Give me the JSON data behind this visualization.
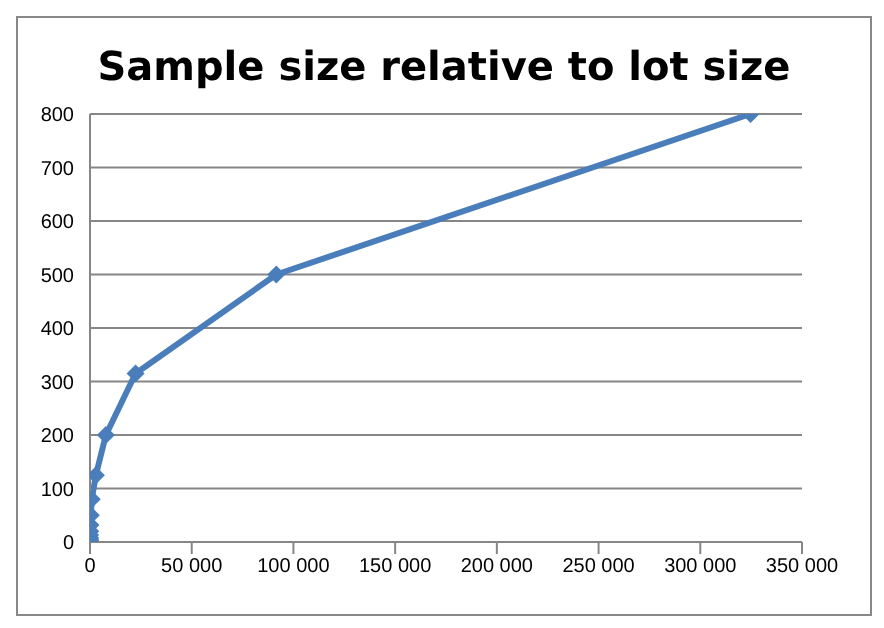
{
  "chart_data": {
    "type": "line",
    "title": "Sample size relative to lot size",
    "x": [
      5,
      12,
      20,
      38,
      70,
      120,
      215,
      390,
      850,
      2900,
      7800,
      22400,
      91600,
      324700
    ],
    "series": [
      {
        "color": "#4a7ebb",
        "values": [
          2,
          3,
          5,
          8,
          13,
          20,
          32,
          50,
          80,
          125,
          200,
          315,
          500,
          800
        ]
      }
    ],
    "xlim": [
      0,
      350000
    ],
    "xticks": [
      0,
      {
        "value": 50000,
        "label": "50 000"
      },
      {
        "value": 100000,
        "label": "100 000"
      },
      {
        "value": 150000,
        "label": "150 000"
      },
      {
        "value": 200000,
        "label": "200 000"
      },
      {
        "value": 250000,
        "label": "250 000"
      },
      {
        "value": 300000,
        "label": "300 000"
      },
      {
        "value": 350000,
        "label": "350 000"
      }
    ],
    "ylim": [
      0,
      800
    ],
    "yticks": [
      0,
      100,
      200,
      300,
      400,
      500,
      600,
      700,
      800
    ],
    "grid": "y",
    "marker": "diamond",
    "line_style": "solid"
  }
}
